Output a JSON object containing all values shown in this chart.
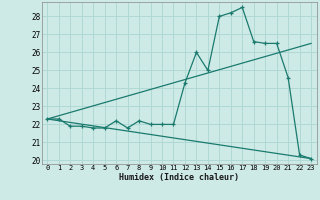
{
  "xlabel": "Humidex (Indice chaleur)",
  "bg_color": "#ceeae6",
  "grid_color": "#b0d8d4",
  "line_color": "#1a7a6e",
  "xlim": [
    -0.5,
    23.5
  ],
  "ylim": [
    19.8,
    28.8
  ],
  "yticks": [
    20,
    21,
    22,
    23,
    24,
    25,
    26,
    27,
    28
  ],
  "xticks": [
    0,
    1,
    2,
    3,
    4,
    5,
    6,
    7,
    8,
    9,
    10,
    11,
    12,
    13,
    14,
    15,
    16,
    17,
    18,
    19,
    20,
    21,
    22,
    23
  ],
  "series_main": {
    "x": [
      0,
      1,
      2,
      3,
      4,
      5,
      6,
      7,
      8,
      9,
      10,
      11,
      12,
      13,
      14,
      15,
      16,
      17,
      18,
      19,
      20,
      21,
      22,
      23
    ],
    "y": [
      22.3,
      22.3,
      21.9,
      21.9,
      21.8,
      21.8,
      22.2,
      21.8,
      22.2,
      22.0,
      22.0,
      22.0,
      24.3,
      26.0,
      25.0,
      28.0,
      28.2,
      28.5,
      26.6,
      26.5,
      26.5,
      24.6,
      20.3,
      20.1
    ]
  },
  "series_upper": {
    "x": [
      0,
      23
    ],
    "y": [
      22.3,
      26.5
    ]
  },
  "series_lower": {
    "x": [
      0,
      23
    ],
    "y": [
      22.3,
      20.1
    ]
  }
}
